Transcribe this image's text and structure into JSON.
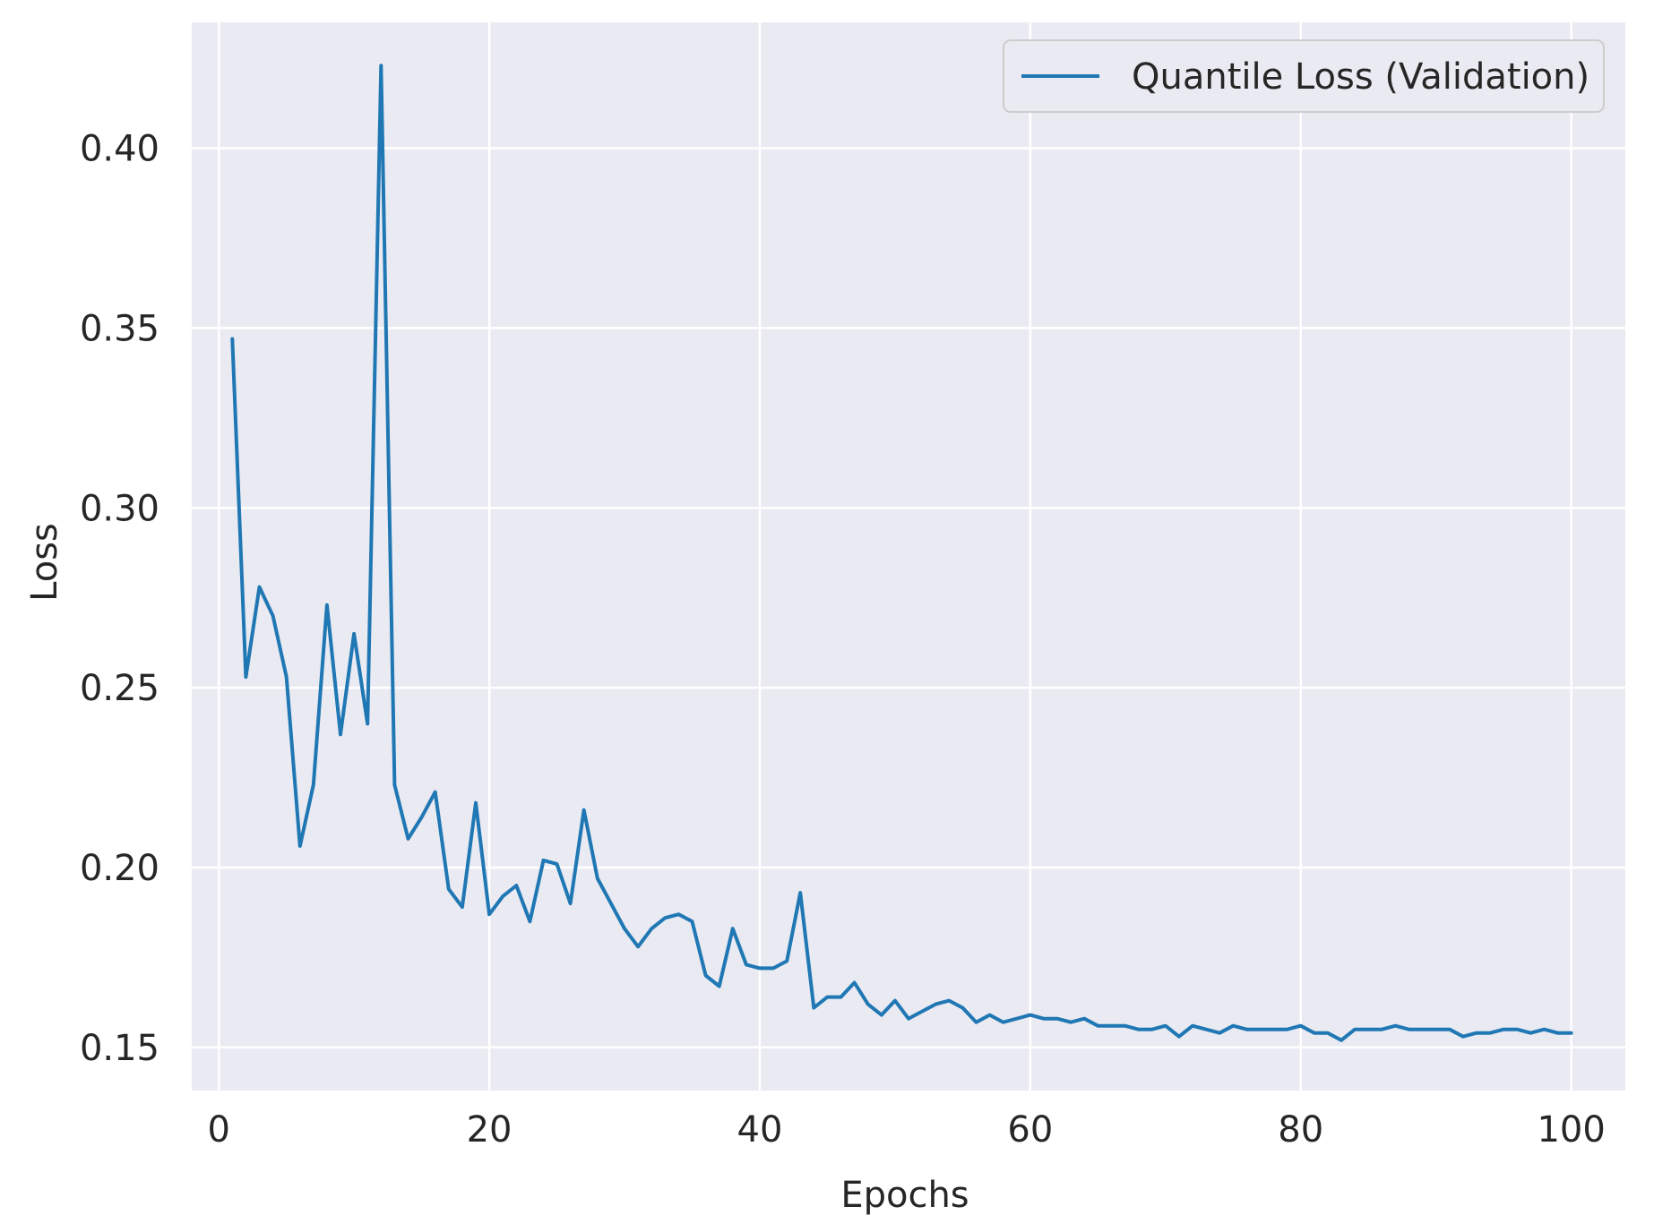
{
  "chart_data": {
    "type": "line",
    "title": "",
    "xlabel": "Epochs",
    "ylabel": "Loss",
    "xlim": [
      -2,
      104
    ],
    "ylim": [
      0.138,
      0.435
    ],
    "xticks": [
      0,
      20,
      40,
      60,
      80,
      100
    ],
    "xtick_labels": [
      "0",
      "20",
      "40",
      "60",
      "80",
      "100"
    ],
    "yticks": [
      0.15,
      0.2,
      0.25,
      0.3,
      0.35,
      0.4
    ],
    "ytick_labels": [
      "0.15",
      "0.20",
      "0.25",
      "0.30",
      "0.35",
      "0.40"
    ],
    "grid": true,
    "legend_position": "top-right",
    "background_color": "#eaeaf2",
    "grid_color": "#ffffff",
    "series": [
      {
        "name": "Quantile Loss (Validation)",
        "color": "#1f77b4",
        "x": [
          1,
          2,
          3,
          4,
          5,
          6,
          7,
          8,
          9,
          10,
          11,
          12,
          13,
          14,
          15,
          16,
          17,
          18,
          19,
          20,
          21,
          22,
          23,
          24,
          25,
          26,
          27,
          28,
          29,
          30,
          31,
          32,
          33,
          34,
          35,
          36,
          37,
          38,
          39,
          40,
          41,
          42,
          43,
          44,
          45,
          46,
          47,
          48,
          49,
          50,
          51,
          52,
          53,
          54,
          55,
          56,
          57,
          58,
          59,
          60,
          61,
          62,
          63,
          64,
          65,
          66,
          67,
          68,
          69,
          70,
          71,
          72,
          73,
          74,
          75,
          76,
          77,
          78,
          79,
          80,
          81,
          82,
          83,
          84,
          85,
          86,
          87,
          88,
          89,
          90,
          91,
          92,
          93,
          94,
          95,
          96,
          97,
          98,
          99,
          100
        ],
        "y": [
          0.347,
          0.253,
          0.278,
          0.27,
          0.253,
          0.206,
          0.223,
          0.273,
          0.237,
          0.265,
          0.24,
          0.423,
          0.223,
          0.208,
          0.214,
          0.221,
          0.194,
          0.189,
          0.218,
          0.187,
          0.192,
          0.195,
          0.185,
          0.202,
          0.201,
          0.19,
          0.216,
          0.197,
          0.19,
          0.183,
          0.178,
          0.183,
          0.186,
          0.187,
          0.185,
          0.17,
          0.167,
          0.183,
          0.173,
          0.172,
          0.172,
          0.174,
          0.193,
          0.161,
          0.164,
          0.164,
          0.168,
          0.162,
          0.159,
          0.163,
          0.158,
          0.16,
          0.162,
          0.163,
          0.161,
          0.157,
          0.159,
          0.157,
          0.158,
          0.159,
          0.158,
          0.158,
          0.157,
          0.158,
          0.156,
          0.156,
          0.156,
          0.155,
          0.155,
          0.156,
          0.153,
          0.156,
          0.155,
          0.154,
          0.156,
          0.155,
          0.155,
          0.155,
          0.155,
          0.156,
          0.154,
          0.154,
          0.152,
          0.155,
          0.155,
          0.155,
          0.156,
          0.155,
          0.155,
          0.155,
          0.155,
          0.153,
          0.154,
          0.154,
          0.155,
          0.155,
          0.154,
          0.155,
          0.154,
          0.154
        ]
      }
    ]
  }
}
